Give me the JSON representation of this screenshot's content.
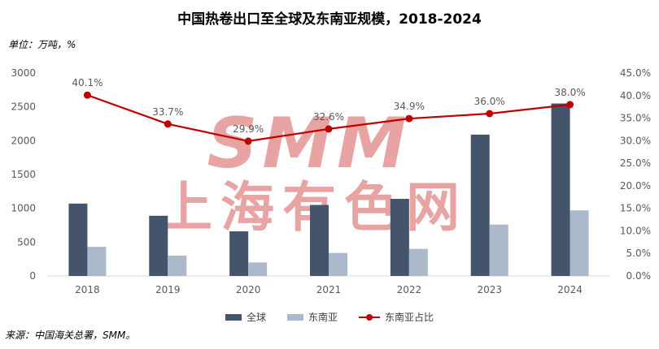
{
  "header": {
    "title": "中国热卷出口至全球及东南亚规模，2018-2024",
    "unit": "单位：万吨，%",
    "source": "来源：中国海关总署，SMM。"
  },
  "watermark": {
    "logo": "SMM",
    "text": "上海有色网"
  },
  "colors": {
    "global": "#44546a",
    "sea": "#acb9ca",
    "share": "#c00000",
    "watermark": "#e8a3a3"
  },
  "chart_data": {
    "type": "bar",
    "categories": [
      "2018",
      "2019",
      "2020",
      "2021",
      "2022",
      "2023",
      "2024"
    ],
    "series": [
      {
        "name": "全球",
        "type": "bar",
        "axis": "left",
        "values": [
          1070,
          890,
          660,
          1050,
          1140,
          2090,
          2550
        ]
      },
      {
        "name": "东南亚",
        "type": "bar",
        "axis": "left",
        "values": [
          430,
          300,
          200,
          340,
          400,
          760,
          970
        ]
      },
      {
        "name": "东南亚占比",
        "type": "line",
        "axis": "right",
        "values": [
          40.1,
          33.7,
          29.9,
          32.6,
          34.9,
          36.0,
          38.0
        ],
        "labels": [
          "40.1%",
          "33.7%",
          "29.9%",
          "32.6%",
          "34.9%",
          "36.0%",
          "38.0%"
        ]
      }
    ],
    "ylim": [
      0,
      3000
    ],
    "yticks": [
      "0",
      "500",
      "1000",
      "1500",
      "2000",
      "2500",
      "3000"
    ],
    "y2lim": [
      0,
      45
    ],
    "y2ticks": [
      "0.0%",
      "5.0%",
      "10.0%",
      "15.0%",
      "20.0%",
      "25.0%",
      "30.0%",
      "35.0%",
      "40.0%",
      "45.0%"
    ],
    "legend_position": "bottom",
    "grid": false
  }
}
